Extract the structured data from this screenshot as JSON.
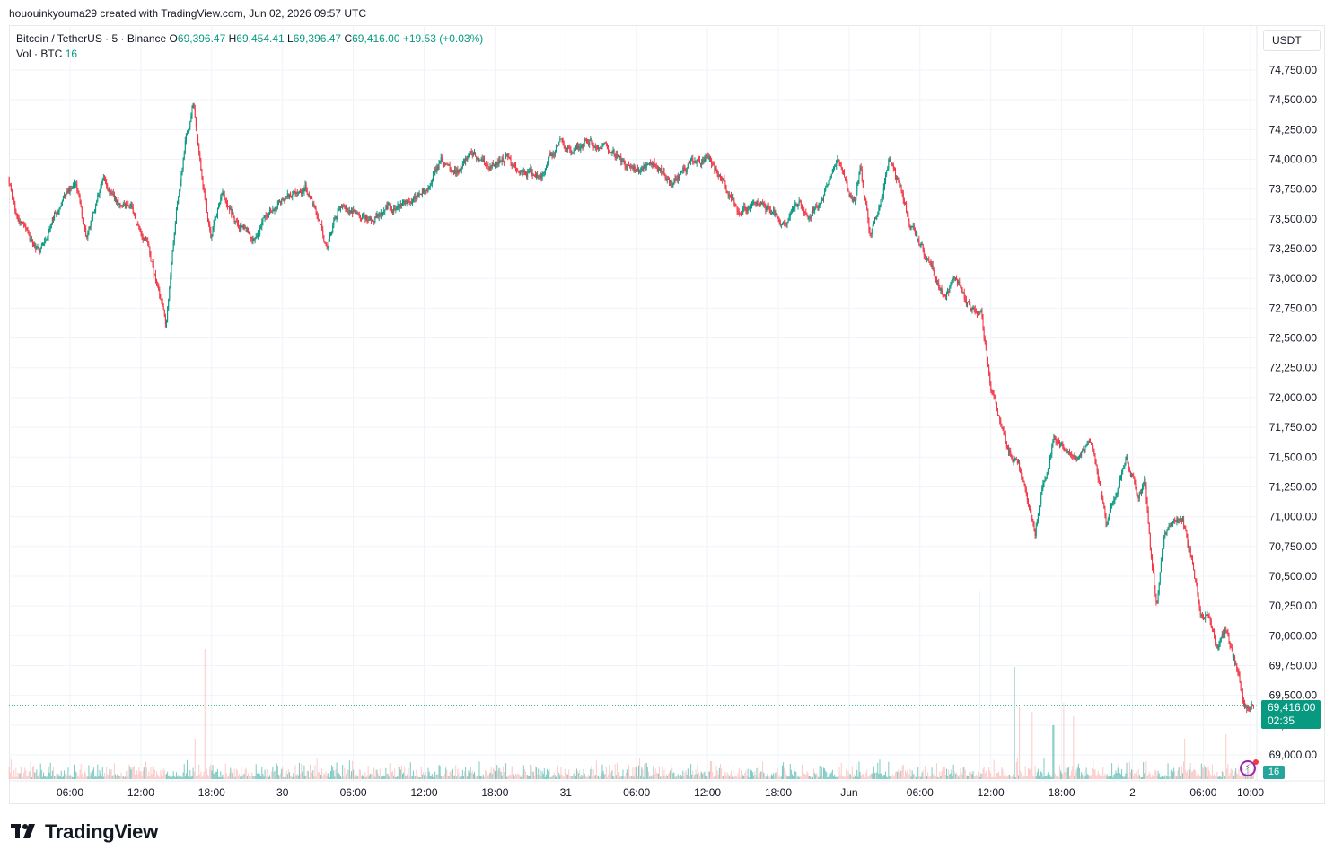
{
  "header": {
    "created_by": "hououinkyouma29 created with TradingView.com, Jun 02, 2026 09:57 UTC"
  },
  "legend": {
    "symbol": "Bitcoin / TetherUS · 5 · Binance",
    "open_key": "O",
    "open": "69,396.47",
    "high_key": "H",
    "high": "69,454.41",
    "low_key": "L",
    "low": "69,396.47",
    "close_key": "C",
    "close": "69,416.00",
    "change": "+19.53 (+0.03%)",
    "vol_label": "Vol · BTC",
    "vol_value": "16"
  },
  "currency_button": "USDT",
  "last_price": {
    "value": "69,416.00",
    "countdown": "02:35"
  },
  "last_volume": "16",
  "brand": {
    "name": "TradingView"
  },
  "colors": {
    "up": "#089981",
    "down": "#f23645",
    "up_vol": "#26a69a",
    "down_vol": "#f7a9a7",
    "grid": "#f0f3fa"
  },
  "icons": {
    "alert": "alert-clock-icon",
    "logo": "tradingview-logo-icon"
  },
  "chart_data": {
    "type": "candlestick",
    "interval": "5",
    "y_ticks": [
      74750,
      74500,
      74250,
      74000,
      73750,
      73500,
      73250,
      73000,
      72750,
      72500,
      72250,
      72000,
      71750,
      71500,
      71250,
      71000,
      70750,
      70500,
      70250,
      70000,
      69750,
      69500,
      69250,
      69000
    ],
    "y_tick_labels": [
      "74,750.00",
      "74,500.00",
      "74,250.00",
      "74,000.00",
      "73,750.00",
      "73,500.00",
      "73,250.00",
      "73,000.00",
      "72,750.00",
      "72,500.00",
      "72,250.00",
      "72,000.00",
      "71,750.00",
      "71,500.00",
      "71,250.00",
      "71,000.00",
      "70,750.00",
      "70,500.00",
      "70,250.00",
      "70,000.00",
      "69,750.00",
      "69,500.00",
      "69,250.00",
      "69,000.00"
    ],
    "x_ticks": [
      "06:00",
      "12:00",
      "18:00",
      "30",
      "06:00",
      "12:00",
      "18:00",
      "31",
      "06:00",
      "12:00",
      "18:00",
      "Jun",
      "06:00",
      "12:00",
      "18:00",
      "2",
      "06:00",
      "10:00"
    ],
    "x_tick_hours": [
      6,
      12,
      18,
      24,
      30,
      36,
      42,
      48,
      54,
      60,
      66,
      72,
      78,
      84,
      90,
      96,
      102,
      106
    ],
    "hours_origin": "May 29 00:00 UTC",
    "x_range_hours": [
      0.8,
      106.3
    ],
    "last_price": 69416.0,
    "path_keypoints": [
      [
        0.8,
        73850
      ],
      [
        1.5,
        73500
      ],
      [
        2.5,
        73350
      ],
      [
        3.5,
        73200
      ],
      [
        4.5,
        73500
      ],
      [
        5.5,
        73700
      ],
      [
        6.5,
        73800
      ],
      [
        7.5,
        73350
      ],
      [
        8.8,
        73850
      ],
      [
        10,
        73650
      ],
      [
        11.2,
        73600
      ],
      [
        12.5,
        73300
      ],
      [
        13.5,
        72950
      ],
      [
        14.2,
        72600
      ],
      [
        15,
        73550
      ],
      [
        15.8,
        74150
      ],
      [
        16.5,
        74500
      ],
      [
        17.2,
        73900
      ],
      [
        18,
        73300
      ],
      [
        19,
        73750
      ],
      [
        20,
        73500
      ],
      [
        21.5,
        73350
      ],
      [
        23,
        73550
      ],
      [
        24.5,
        73700
      ],
      [
        26,
        73750
      ],
      [
        27,
        73550
      ],
      [
        27.8,
        73250
      ],
      [
        28.8,
        73600
      ],
      [
        30,
        73550
      ],
      [
        31.5,
        73500
      ],
      [
        33,
        73600
      ],
      [
        35,
        73650
      ],
      [
        36.5,
        73800
      ],
      [
        37.5,
        74000
      ],
      [
        38.5,
        73850
      ],
      [
        40,
        74050
      ],
      [
        41.5,
        73950
      ],
      [
        43,
        74000
      ],
      [
        44.5,
        73900
      ],
      [
        46,
        73850
      ],
      [
        47.5,
        74150
      ],
      [
        48.5,
        74050
      ],
      [
        50,
        74150
      ],
      [
        51.5,
        74100
      ],
      [
        53,
        73950
      ],
      [
        54,
        73900
      ],
      [
        55.5,
        73950
      ],
      [
        57,
        73800
      ],
      [
        58.5,
        73950
      ],
      [
        60,
        74000
      ],
      [
        61.5,
        73800
      ],
      [
        62.5,
        73550
      ],
      [
        64,
        73650
      ],
      [
        65.5,
        73550
      ],
      [
        66.5,
        73450
      ],
      [
        67.5,
        73650
      ],
      [
        68.8,
        73500
      ],
      [
        70,
        73700
      ],
      [
        71,
        74000
      ],
      [
        71.8,
        73750
      ],
      [
        72.5,
        73600
      ],
      [
        73,
        73950
      ],
      [
        73.8,
        73350
      ],
      [
        74.8,
        73650
      ],
      [
        75.4,
        74000
      ],
      [
        76.3,
        73800
      ],
      [
        77.2,
        73450
      ],
      [
        78,
        73300
      ],
      [
        79,
        73100
      ],
      [
        80,
        72850
      ],
      [
        81,
        73000
      ],
      [
        82.3,
        72750
      ],
      [
        83.2,
        72700
      ],
      [
        84,
        72100
      ],
      [
        84.6,
        71900
      ],
      [
        85.5,
        71550
      ],
      [
        86.5,
        71400
      ],
      [
        87.3,
        71050
      ],
      [
        87.8,
        70850
      ],
      [
        88.5,
        71300
      ],
      [
        89.4,
        71650
      ],
      [
        90.5,
        71600
      ],
      [
        91.5,
        71500
      ],
      [
        92.5,
        71650
      ],
      [
        93.2,
        71300
      ],
      [
        93.8,
        70900
      ],
      [
        94.5,
        71150
      ],
      [
        95.5,
        71500
      ],
      [
        96.5,
        71200
      ],
      [
        97.1,
        71300
      ],
      [
        97.6,
        70700
      ],
      [
        98.1,
        70250
      ],
      [
        98.7,
        70800
      ],
      [
        99.5,
        71000
      ],
      [
        100.3,
        70950
      ],
      [
        101,
        70700
      ],
      [
        101.8,
        70200
      ],
      [
        102.5,
        70150
      ],
      [
        103.2,
        69900
      ],
      [
        104,
        70050
      ],
      [
        104.8,
        69750
      ],
      [
        105.4,
        69450
      ],
      [
        106,
        69416
      ]
    ],
    "volume_spikes": [
      [
        16.6,
        45
      ],
      [
        17.4,
        145
      ],
      [
        60.3,
        20
      ],
      [
        83,
        210
      ],
      [
        86,
        125
      ],
      [
        86.4,
        80
      ],
      [
        87.5,
        75
      ],
      [
        89.3,
        60
      ],
      [
        90.2,
        85
      ],
      [
        91,
        70
      ],
      [
        100.4,
        45
      ],
      [
        103.9,
        50
      ]
    ]
  }
}
